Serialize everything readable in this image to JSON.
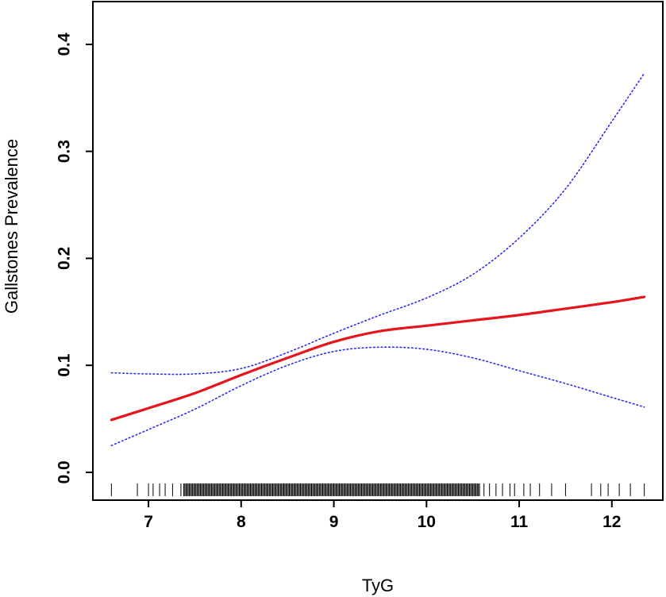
{
  "chart_data": {
    "type": "line",
    "title": "",
    "xlabel": "TyG",
    "ylabel": "Gallstones Prevalence",
    "xlim": [
      6.4,
      12.55
    ],
    "ylim": [
      -0.026,
      0.44
    ],
    "x_ticks": [
      "7",
      "8",
      "9",
      "10",
      "11",
      "12"
    ],
    "y_ticks": [
      "0.0",
      "0.1",
      "0.2",
      "0.3",
      "0.4"
    ],
    "grid": false,
    "legend": "none",
    "colors": {
      "fit": "#e8141c",
      "ci": "#2b2bf0",
      "rug": "#000000",
      "frame": "#000000"
    },
    "series": [
      {
        "role": "fit",
        "style": "solid",
        "x": [
          6.6,
          7.0,
          7.5,
          8.0,
          8.5,
          9.0,
          9.5,
          10.0,
          10.5,
          11.0,
          11.5,
          12.0,
          12.35
        ],
        "y": [
          0.049,
          0.06,
          0.074,
          0.091,
          0.107,
          0.122,
          0.132,
          0.137,
          0.142,
          0.147,
          0.153,
          0.159,
          0.164
        ]
      },
      {
        "role": "ci-upper",
        "style": "dotted",
        "x": [
          6.6,
          7.0,
          7.5,
          8.0,
          8.5,
          9.0,
          9.5,
          10.0,
          10.5,
          11.0,
          11.5,
          12.0,
          12.35
        ],
        "y": [
          0.093,
          0.092,
          0.092,
          0.097,
          0.112,
          0.13,
          0.147,
          0.163,
          0.185,
          0.219,
          0.265,
          0.328,
          0.373
        ]
      },
      {
        "role": "ci-lower",
        "style": "dotted",
        "x": [
          6.6,
          7.0,
          7.5,
          8.0,
          8.5,
          9.0,
          9.5,
          10.0,
          10.5,
          11.0,
          11.5,
          12.0,
          12.35
        ],
        "y": [
          0.025,
          0.04,
          0.059,
          0.081,
          0.1,
          0.113,
          0.117,
          0.115,
          0.107,
          0.095,
          0.083,
          0.07,
          0.061
        ]
      }
    ],
    "rug": {
      "sparse_x": [
        6.6,
        6.88,
        7.0,
        7.05,
        7.12,
        7.18,
        7.26,
        7.35,
        10.62,
        10.68,
        10.75,
        10.82,
        10.9,
        10.95,
        11.05,
        11.12,
        11.22,
        11.35,
        11.5,
        11.78,
        11.88,
        11.96,
        12.08,
        12.2,
        12.35
      ],
      "dense_range": [
        7.38,
        10.58
      ],
      "dense_step": 0.012
    }
  }
}
